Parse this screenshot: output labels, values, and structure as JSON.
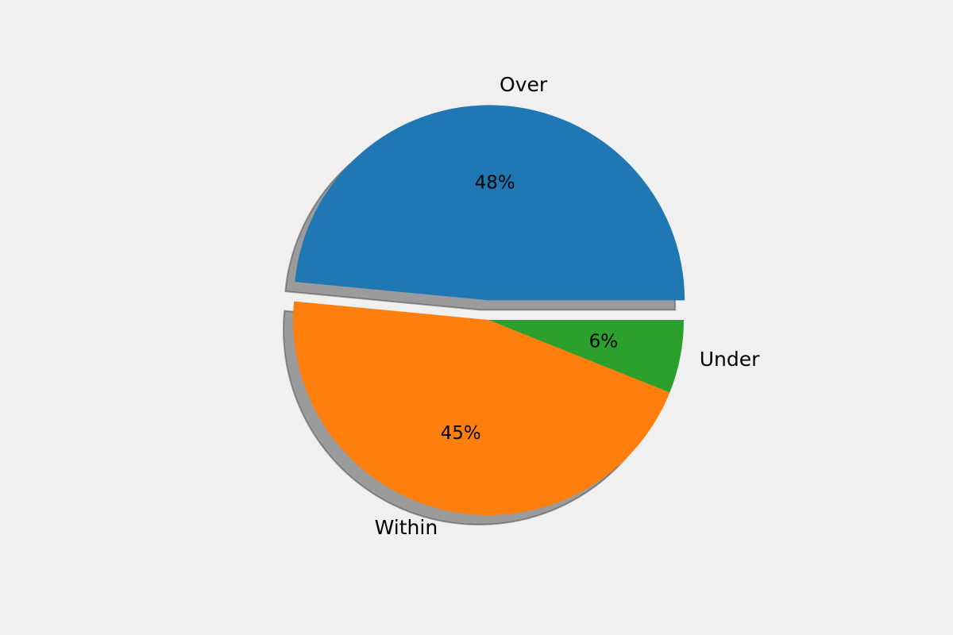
{
  "chart_data": {
    "type": "pie",
    "categories": [
      "Over",
      "Within",
      "Under"
    ],
    "values": [
      48,
      45,
      6
    ],
    "value_labels": [
      "48%",
      "45%",
      "6%"
    ],
    "colors": [
      "#1f77b4",
      "#ff7f0e",
      "#2ca02c"
    ],
    "explode": [
      0.1,
      0,
      0
    ],
    "shadow": true,
    "startangle": 0
  }
}
